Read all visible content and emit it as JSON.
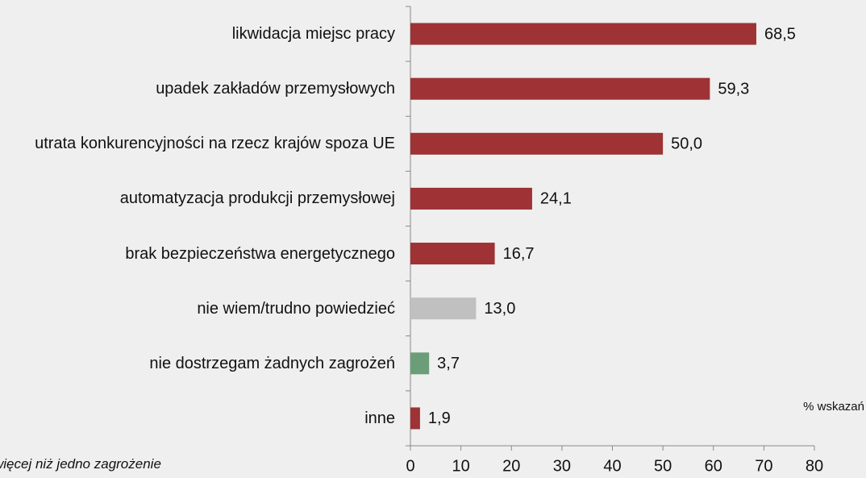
{
  "chart_data": {
    "type": "barh",
    "categories": [
      "likwidacja miejsc pracy",
      "upadek zakładów przemysłowych",
      "utrata konkurencyjności na rzecz krajów spoza UE",
      "automatyzacja produkcji przemysłowej",
      "brak bezpieczeństwa energetycznego",
      "nie wiem/trudno powiedzieć",
      "nie dostrzegam żadnych zagrożeń",
      "inne"
    ],
    "values": [
      68.5,
      59.3,
      50.0,
      24.1,
      16.7,
      13.0,
      3.7,
      1.9
    ],
    "value_labels": [
      "68,5",
      "59,3",
      "50,0",
      "24,1",
      "16,7",
      "13,0",
      "3,7",
      "1,9"
    ],
    "colors": [
      "#9e3235",
      "#9e3235",
      "#9e3235",
      "#9e3235",
      "#9e3235",
      "#c0c0c0",
      "#6b9e78",
      "#9e3235"
    ],
    "xlim": [
      0,
      80
    ],
    "xticks": [
      0,
      10,
      20,
      30,
      40,
      50,
      60,
      70,
      80
    ],
    "x_label": "% wskazań",
    "note": "więcej niż jedno zagrożenie"
  }
}
